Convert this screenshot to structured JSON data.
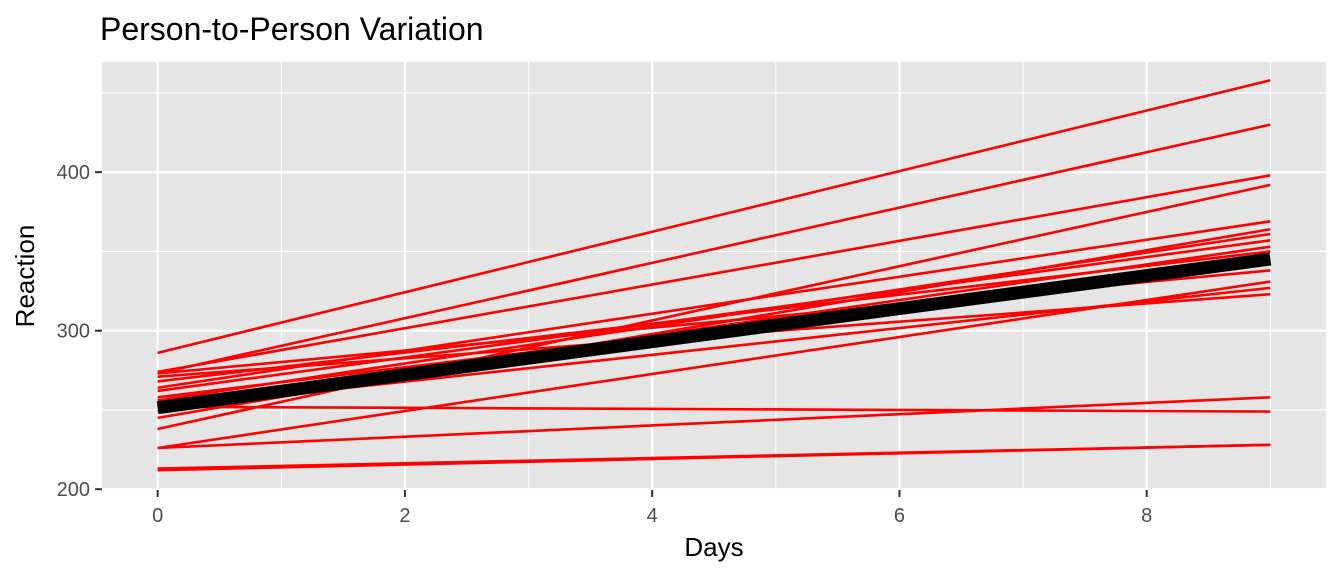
{
  "chart_data": {
    "type": "line",
    "title": "Person-to-Person Variation",
    "xlabel": "Days",
    "ylabel": "Reaction",
    "xlim": [
      -0.45,
      9.45
    ],
    "ylim": [
      199.5,
      469.5
    ],
    "x_ticks": [
      0,
      2,
      4,
      6,
      8
    ],
    "x_tick_labels": [
      "0",
      "2",
      "4",
      "6",
      "8"
    ],
    "y_ticks": [
      200,
      300,
      400
    ],
    "y_tick_labels": [
      "200",
      "300",
      "400"
    ],
    "grid": true,
    "legend": "none",
    "colors": {
      "subject": "#ff0000",
      "average": "#000000",
      "panel": "#e5e5e5",
      "grid": "#ffffff"
    },
    "series_x": [
      0,
      9
    ],
    "series": [
      {
        "values": [
          286,
          458
        ]
      },
      {
        "values": [
          273,
          430
        ]
      },
      {
        "values": [
          274,
          398
        ]
      },
      {
        "values": [
          238,
          392
        ]
      },
      {
        "values": [
          264,
          369
        ]
      },
      {
        "values": [
          245,
          364
        ]
      },
      {
        "values": [
          256,
          361
        ]
      },
      {
        "values": [
          262,
          357
        ]
      },
      {
        "values": [
          252,
          353
        ]
      },
      {
        "values": [
          268,
          350
        ]
      },
      {
        "values": [
          249,
          346
        ]
      },
      {
        "values": [
          258,
          343
        ]
      },
      {
        "values": [
          273,
          338
        ]
      },
      {
        "values": [
          226,
          331
        ]
      },
      {
        "values": [
          251,
          327
        ]
      },
      {
        "values": [
          271,
          323
        ]
      },
      {
        "values": [
          226,
          258
        ]
      },
      {
        "values": [
          252,
          249
        ]
      },
      {
        "values": [
          212,
          228
        ]
      },
      {
        "values": [
          213,
          228
        ]
      }
    ],
    "average": {
      "values": [
        251.4,
        345.2
      ]
    }
  }
}
